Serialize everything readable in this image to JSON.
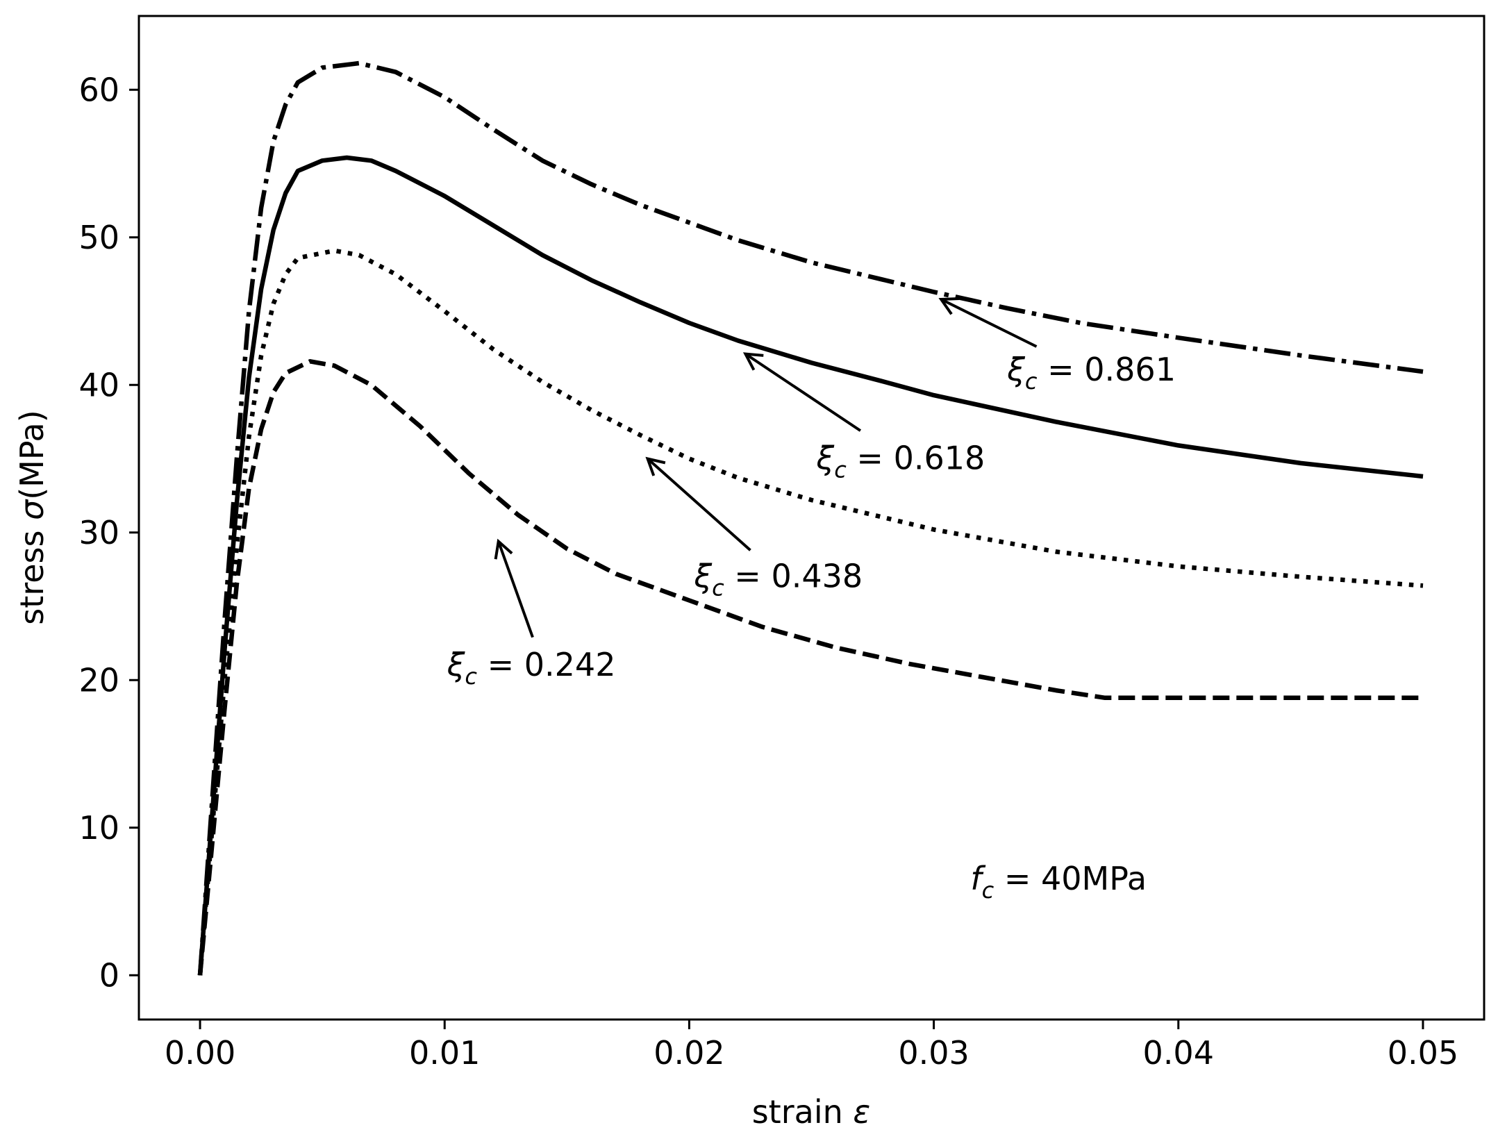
{
  "chart_data": {
    "type": "line",
    "title": "",
    "xlabel": "strain",
    "xlabel_symbol": "ε",
    "ylabel_prefix": "stress ",
    "ylabel_symbol": "σ",
    "ylabel_suffix": "(MPa)",
    "xlim": [
      -0.0025,
      0.0525
    ],
    "ylim": [
      -3,
      65
    ],
    "x_ticks": [
      0.0,
      0.01,
      0.02,
      0.03,
      0.04,
      0.05
    ],
    "x_tick_labels": [
      "0.00",
      "0.01",
      "0.02",
      "0.03",
      "0.04",
      "0.05"
    ],
    "y_ticks": [
      0,
      10,
      20,
      30,
      40,
      50,
      60
    ],
    "y_tick_labels": [
      "0",
      "10",
      "20",
      "30",
      "40",
      "50",
      "60"
    ],
    "grid": false,
    "fc_label": {
      "symbol": "f",
      "subscript": "c",
      "text": " = 40MPa",
      "x": 0.0315,
      "y": 5.8
    },
    "series": [
      {
        "name": "ξc = 0.861",
        "line_style": "dashdot",
        "points": [
          [
            0.0,
            0
          ],
          [
            0.0005,
            12
          ],
          [
            0.001,
            24
          ],
          [
            0.0015,
            35
          ],
          [
            0.002,
            45
          ],
          [
            0.0025,
            52
          ],
          [
            0.003,
            56.5
          ],
          [
            0.0035,
            59
          ],
          [
            0.004,
            60.5
          ],
          [
            0.005,
            61.5
          ],
          [
            0.0065,
            61.8
          ],
          [
            0.008,
            61.2
          ],
          [
            0.01,
            59.5
          ],
          [
            0.012,
            57.3
          ],
          [
            0.014,
            55.2
          ],
          [
            0.016,
            53.6
          ],
          [
            0.018,
            52.2
          ],
          [
            0.02,
            51
          ],
          [
            0.022,
            49.8
          ],
          [
            0.025,
            48.3
          ],
          [
            0.028,
            47.1
          ],
          [
            0.03,
            46.3
          ],
          [
            0.033,
            45.2
          ],
          [
            0.036,
            44.2
          ],
          [
            0.04,
            43.2
          ],
          [
            0.045,
            42
          ],
          [
            0.05,
            40.9
          ]
        ]
      },
      {
        "name": "ξc = 0.618",
        "line_style": "solid",
        "points": [
          [
            0.0,
            0
          ],
          [
            0.0005,
            11
          ],
          [
            0.001,
            22
          ],
          [
            0.0015,
            32
          ],
          [
            0.002,
            40.5
          ],
          [
            0.0025,
            46.5
          ],
          [
            0.003,
            50.5
          ],
          [
            0.0035,
            53
          ],
          [
            0.004,
            54.5
          ],
          [
            0.005,
            55.2
          ],
          [
            0.006,
            55.4
          ],
          [
            0.007,
            55.2
          ],
          [
            0.008,
            54.5
          ],
          [
            0.01,
            52.8
          ],
          [
            0.012,
            50.8
          ],
          [
            0.014,
            48.8
          ],
          [
            0.016,
            47.1
          ],
          [
            0.018,
            45.6
          ],
          [
            0.02,
            44.2
          ],
          [
            0.022,
            43
          ],
          [
            0.025,
            41.5
          ],
          [
            0.028,
            40.2
          ],
          [
            0.03,
            39.3
          ],
          [
            0.035,
            37.5
          ],
          [
            0.04,
            35.9
          ],
          [
            0.045,
            34.7
          ],
          [
            0.05,
            33.8
          ]
        ]
      },
      {
        "name": "ξc = 0.438",
        "line_style": "dotted",
        "points": [
          [
            0.0,
            0
          ],
          [
            0.0005,
            10
          ],
          [
            0.001,
            20
          ],
          [
            0.0015,
            29
          ],
          [
            0.002,
            36.5
          ],
          [
            0.0025,
            42
          ],
          [
            0.003,
            45.5
          ],
          [
            0.0035,
            47.5
          ],
          [
            0.004,
            48.6
          ],
          [
            0.0055,
            49.1
          ],
          [
            0.0065,
            48.8
          ],
          [
            0.008,
            47.5
          ],
          [
            0.01,
            45
          ],
          [
            0.012,
            42.4
          ],
          [
            0.014,
            40.2
          ],
          [
            0.016,
            38.3
          ],
          [
            0.018,
            36.6
          ],
          [
            0.02,
            35
          ],
          [
            0.022,
            33.7
          ],
          [
            0.025,
            32.2
          ],
          [
            0.028,
            31
          ],
          [
            0.03,
            30.2
          ],
          [
            0.035,
            28.7
          ],
          [
            0.04,
            27.7
          ],
          [
            0.045,
            27
          ],
          [
            0.05,
            26.4
          ]
        ]
      },
      {
        "name": "ξc = 0.242",
        "line_style": "dashed",
        "points": [
          [
            0.0,
            0
          ],
          [
            0.0005,
            9
          ],
          [
            0.001,
            18
          ],
          [
            0.0015,
            26.5
          ],
          [
            0.002,
            33
          ],
          [
            0.0025,
            37
          ],
          [
            0.003,
            39.5
          ],
          [
            0.0035,
            40.8
          ],
          [
            0.0045,
            41.6
          ],
          [
            0.0055,
            41.3
          ],
          [
            0.007,
            40
          ],
          [
            0.009,
            37.2
          ],
          [
            0.011,
            34
          ],
          [
            0.013,
            31.2
          ],
          [
            0.015,
            28.9
          ],
          [
            0.017,
            27.2
          ],
          [
            0.02,
            25.4
          ],
          [
            0.023,
            23.6
          ],
          [
            0.026,
            22.2
          ],
          [
            0.029,
            21.1
          ],
          [
            0.032,
            20.2
          ],
          [
            0.035,
            19.3
          ],
          [
            0.037,
            18.8
          ],
          [
            0.05,
            18.8
          ]
        ]
      }
    ],
    "annotations": [
      {
        "symbol": "ξ",
        "subscript": "c",
        "text": " = 0.861",
        "text_x": 0.033,
        "text_y": 40.3,
        "tail_x": 0.0342,
        "tail_y": 42.6,
        "head_x": 0.0303,
        "head_y": 45.8
      },
      {
        "symbol": "ξ",
        "subscript": "c",
        "text": " = 0.618",
        "text_x": 0.0252,
        "text_y": 34.3,
        "tail_x": 0.027,
        "tail_y": 36.9,
        "head_x": 0.0223,
        "head_y": 42.1
      },
      {
        "symbol": "ξ",
        "subscript": "c",
        "text": " = 0.438",
        "text_x": 0.0202,
        "text_y": 26.3,
        "tail_x": 0.0225,
        "tail_y": 28.8,
        "head_x": 0.0183,
        "head_y": 35.0
      },
      {
        "symbol": "ξ",
        "subscript": "c",
        "text": " = 0.242",
        "text_x": 0.0101,
        "text_y": 20.3,
        "tail_x": 0.0136,
        "tail_y": 22.9,
        "head_x": 0.0122,
        "head_y": 29.4
      }
    ]
  }
}
